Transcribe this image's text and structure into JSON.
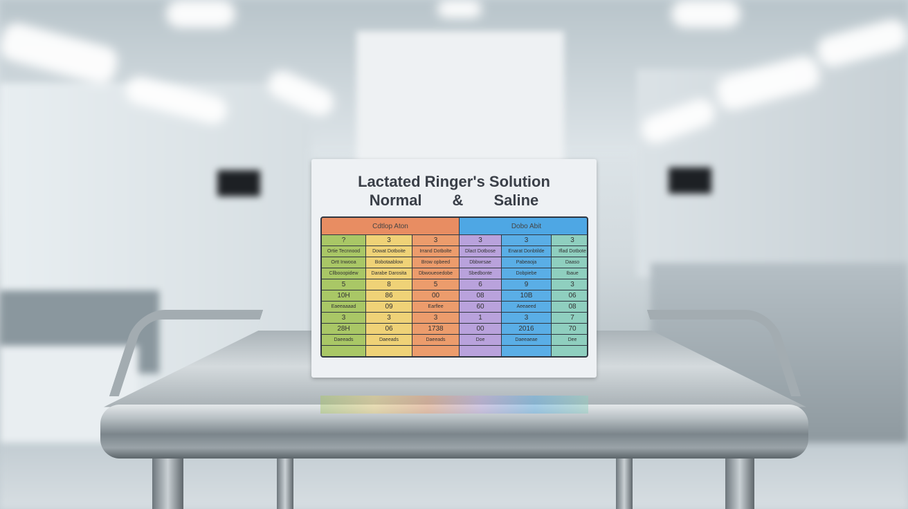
{
  "card": {
    "title_line1": "Lactated Ringer's Solution",
    "title_line2_left": "Normal",
    "title_line2_mid": "&",
    "title_line2_right": "Saline",
    "table": {
      "headers": [
        "Cdtlop Aton",
        "Dobo Abit"
      ],
      "column_colors": [
        "#a9c766",
        "#efd277",
        "#ec9c6c",
        "#b9a2dc",
        "#5aaee6",
        "#8fcfbf"
      ],
      "header_colors": [
        "#e88d62",
        "#4ea7e4"
      ],
      "rows": [
        [
          "?",
          "3",
          "3",
          "3",
          "3",
          "3"
        ],
        [
          "Ortie Tecnnood",
          "Dowat Dotboite",
          "Irrand Dotbolte",
          "Dlact Dotbose",
          "Enarat Donbtilde",
          "Iflad Dotbote"
        ],
        [
          "Ortt Inwooa",
          "Bobotaablow",
          "Brow opbeed",
          "Dbbwrsae",
          "Pabeaoja",
          "Daaso"
        ],
        [
          "Cllbooopidew",
          "Darabe Darosita",
          "Dbwoueoedobe",
          "Sbedbonte",
          "Dobpiebe",
          "Ibaue"
        ],
        [
          "5",
          "8",
          "5",
          "6",
          "9",
          "3"
        ],
        [
          "10H",
          "86",
          "00",
          "08",
          "10B",
          "06"
        ],
        [
          "Eaeeaaaad",
          "09",
          "Earflee",
          "60",
          "Aeeaeed",
          "08"
        ],
        [
          "3",
          "3",
          "3",
          "1",
          "3",
          "7"
        ],
        [
          "28H",
          "06",
          "1738",
          "00",
          "2016",
          "70"
        ],
        [
          "Daeeads",
          "Daeeads",
          "Daeeads",
          "Doe",
          "Daeeaeae",
          "Dee"
        ],
        [
          "",
          "",
          "",
          "",
          "",
          ""
        ]
      ]
    }
  }
}
